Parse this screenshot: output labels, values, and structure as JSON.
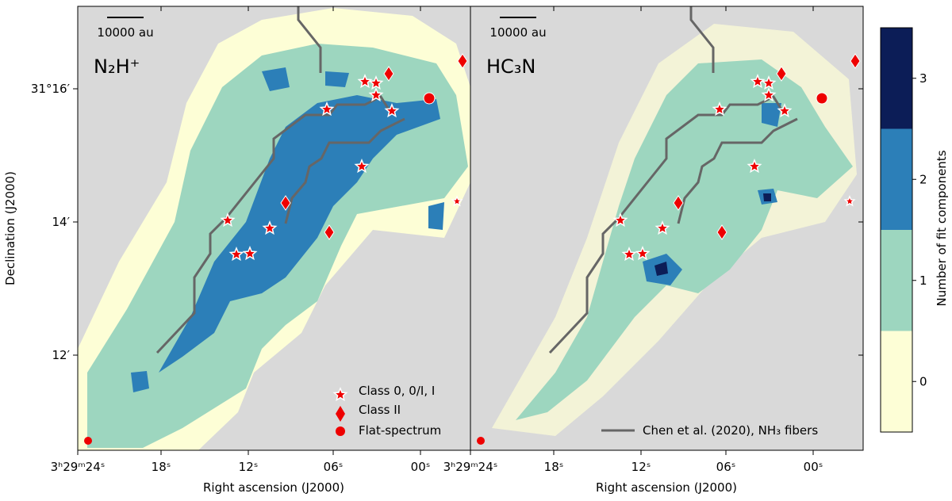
{
  "figure": {
    "panels": [
      {
        "title": "N₂H⁺",
        "scale_bar": "10000 au",
        "xlabel": "Right ascension (J2000)",
        "xticks": [
          "3ʰ29ᵐ24ˢ",
          "18ˢ",
          "12ˢ",
          "06ˢ",
          "00ˢ"
        ],
        "legend": [
          "Class 0, 0/I, I",
          "Class II",
          "Flat-spectrum"
        ]
      },
      {
        "title": "HC₃N",
        "scale_bar": "10000 au",
        "xlabel": "Right ascension (J2000)",
        "xticks": [
          "3ʰ29ᵐ24ˢ",
          "18ˢ",
          "12ˢ",
          "06ˢ",
          "00ˢ"
        ],
        "legend": [
          "Chen et al. (2020), NH₃ fibers"
        ]
      }
    ],
    "ylabel": "Declination (J2000)",
    "yticks": [
      "31°16′",
      "14′",
      "12′"
    ],
    "colorbar": {
      "label": "Number of fit components",
      "lim": [
        -0.5,
        3.5
      ],
      "ticks": [
        0,
        1,
        2,
        3
      ],
      "colors": [
        "#fdfed6",
        "#9dd6bf",
        "#2c7fb8",
        "#0c1d57"
      ]
    }
  }
}
